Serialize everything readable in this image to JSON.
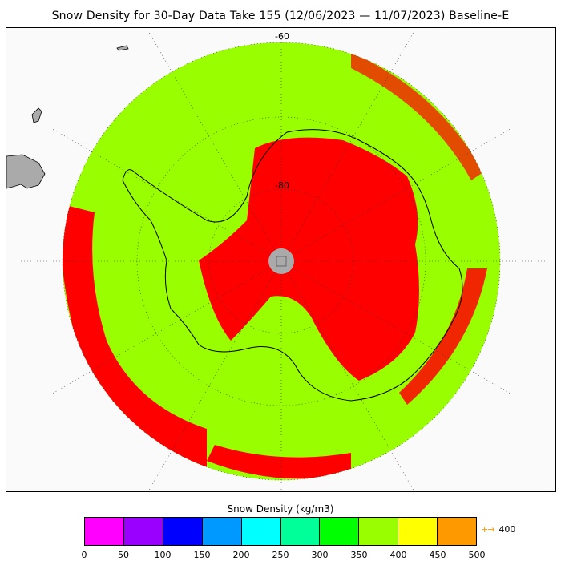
{
  "title": "Snow Density for 30-Day Data Take 155 (12/06/2023 — 11/07/2023) Baseline-E",
  "grid_labels": {
    "lat60": "-60",
    "lat80": "-80"
  },
  "colorbar": {
    "title": "Snow Density (kg/m3)",
    "ticks": [
      "0",
      "50",
      "100",
      "150",
      "200",
      "250",
      "300",
      "350",
      "400",
      "450",
      "500"
    ],
    "colors": [
      "#ff00ff",
      "#9900ff",
      "#0000ff",
      "#0099ff",
      "#00ffff",
      "#00ff99",
      "#00ff00",
      "#99ff00",
      "#ffff00",
      "#ff9900"
    ],
    "overflow_label": "400",
    "overflow_arrow": "+→",
    "overflow_color": "#ff9900"
  },
  "map": {
    "projection": "south-polar-stereographic",
    "land_color": "#aaaaaa",
    "ocean_color": "#fafafa",
    "dominant_colors": {
      "outer_ring": "#99ff00",
      "margin": "#ff0000",
      "interior": "#ff0000",
      "pole_hole": "#aaaaaa"
    }
  }
}
